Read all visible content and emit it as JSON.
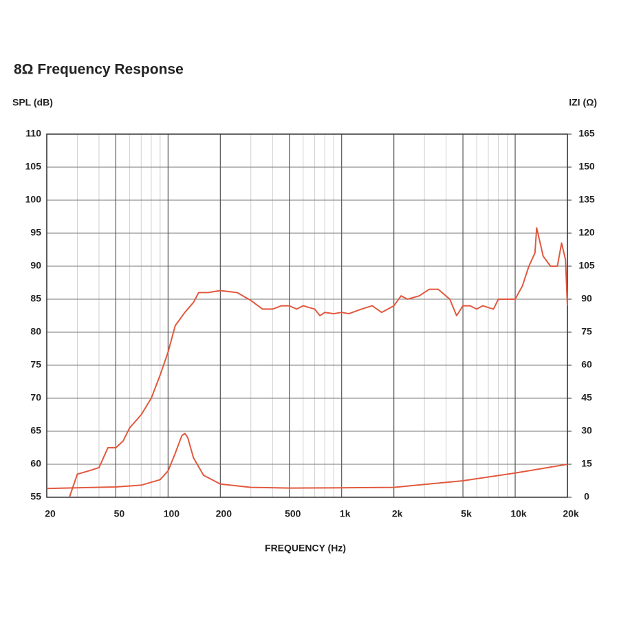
{
  "chart_data": {
    "type": "line",
    "title": "8Ω Frequency Response",
    "ylabel": "SPL (dB)",
    "y2label": "IZI (Ω)",
    "xlabel": "FREQUENCY (Hz)",
    "xscale": "log",
    "grid": true,
    "xlim": [
      20,
      20000
    ],
    "xticks": [
      20,
      50,
      100,
      200,
      500,
      {
        "value": 1000,
        "label": "1k"
      },
      {
        "value": 2000,
        "label": "2k"
      },
      {
        "value": 5000,
        "label": "5k"
      },
      {
        "value": 10000,
        "label": "10k"
      },
      {
        "value": 20000,
        "label": "20k"
      }
    ],
    "xminorticks": [
      30,
      40,
      60,
      70,
      80,
      90,
      300,
      400,
      600,
      700,
      800,
      900,
      3000,
      4000,
      6000,
      7000,
      8000,
      9000
    ],
    "ylim": [
      55,
      110
    ],
    "yticks": [
      55,
      60,
      65,
      70,
      75,
      80,
      85,
      90,
      95,
      100,
      105,
      110
    ],
    "y2lim": [
      0,
      165
    ],
    "y2ticks": [
      0,
      15,
      30,
      45,
      60,
      75,
      90,
      105,
      120,
      135,
      150,
      165
    ],
    "series": [
      {
        "name": "SPL",
        "color": "#e2583e",
        "x": [
          27,
          30,
          35,
          40,
          45,
          50,
          55,
          60,
          70,
          80,
          90,
          100,
          110,
          125,
          140,
          150,
          170,
          200,
          250,
          300,
          350,
          400,
          450,
          500,
          550,
          600,
          700,
          750,
          800,
          900,
          1000,
          1100,
          1300,
          1500,
          1700,
          2000,
          2200,
          2400,
          2800,
          3200,
          3600,
          4200,
          4600,
          5000,
          5500,
          6000,
          6500,
          7500,
          8000,
          9000,
          10000,
          11000,
          12000,
          13000,
          13300,
          14500,
          16000,
          17500,
          18500,
          19500,
          20000
        ],
        "values": [
          55,
          58.5,
          59,
          59.5,
          62.5,
          62.5,
          63.5,
          65.5,
          67.5,
          70,
          73.5,
          77,
          81,
          83,
          84.5,
          86,
          86,
          86.3,
          86,
          84.8,
          83.5,
          83.5,
          84,
          84,
          83.5,
          84,
          83.5,
          82.5,
          83,
          82.8,
          83,
          82.8,
          83.5,
          84,
          83,
          84,
          85.5,
          85,
          85.5,
          86.5,
          86.5,
          85,
          82.5,
          84,
          84,
          83.5,
          84,
          83.5,
          85,
          85,
          85,
          87,
          90,
          92,
          95.8,
          91.5,
          90,
          90,
          93.5,
          91,
          84
        ]
      },
      {
        "name": "Impedance",
        "color": "#e2583e",
        "axis": "y2",
        "x": [
          20,
          50,
          70,
          90,
          100,
          110,
          120,
          125,
          130,
          140,
          160,
          200,
          300,
          500,
          1000,
          2000,
          5000,
          10000,
          20000
        ],
        "values": [
          4,
          4.7,
          5.5,
          8,
          12,
          20,
          28,
          29,
          27,
          18,
          10,
          6,
          4.5,
          4.2,
          4.3,
          4.5,
          7.5,
          11,
          15
        ]
      }
    ]
  }
}
